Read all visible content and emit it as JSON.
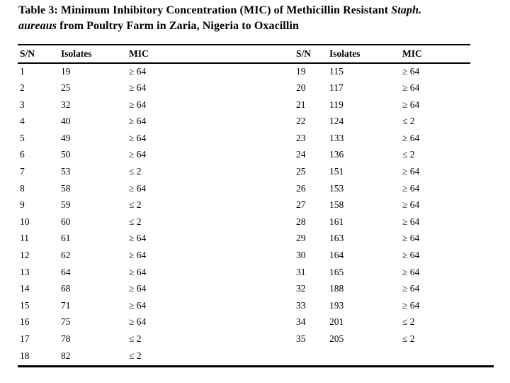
{
  "title": {
    "part1": "Table 3: Minimum Inhibitory Concentration (MIC) of Methicillin Resistant ",
    "part2_italic": "Staph.",
    "part3_italic": "aureaus",
    "part4": " from Poultry Farm in Zaria, Nigeria to Oxacillin"
  },
  "table": {
    "headers": [
      "S/N",
      "Isolates",
      "MIC"
    ],
    "left_rows": [
      [
        "1",
        "19",
        "≥ 64"
      ],
      [
        "2",
        "25",
        "≥ 64"
      ],
      [
        "3",
        "32",
        "≥ 64"
      ],
      [
        "4",
        "40",
        "≥ 64"
      ],
      [
        "5",
        "49",
        "≥ 64"
      ],
      [
        "6",
        "50",
        "≥ 64"
      ],
      [
        "7",
        "53",
        "≤ 2"
      ],
      [
        "8",
        "58",
        "≥ 64"
      ],
      [
        "9",
        "59",
        "≤ 2"
      ],
      [
        "10",
        "60",
        "≤ 2"
      ],
      [
        "11",
        "61",
        "≥ 64"
      ],
      [
        "12",
        "62",
        "≥ 64"
      ],
      [
        "13",
        "64",
        "≥ 64"
      ],
      [
        "14",
        "68",
        "≥ 64"
      ],
      [
        "15",
        "71",
        "≥ 64"
      ],
      [
        "16",
        "75",
        "≥ 64"
      ],
      [
        "17",
        "78",
        "≤ 2"
      ],
      [
        "18",
        "82",
        "≤ 2"
      ]
    ],
    "right_rows": [
      [
        "19",
        "115",
        "≥ 64"
      ],
      [
        "20",
        "117",
        "≥ 64"
      ],
      [
        "21",
        "119",
        "≥ 64"
      ],
      [
        "22",
        "124",
        "≤ 2"
      ],
      [
        "23",
        "133",
        "≥ 64"
      ],
      [
        "24",
        "136",
        "≤ 2"
      ],
      [
        "25",
        "151",
        "≥ 64"
      ],
      [
        "26",
        "153",
        "≥ 64"
      ],
      [
        "27",
        "158",
        "≥ 64"
      ],
      [
        "28",
        "161",
        "≥ 64"
      ],
      [
        "29",
        "163",
        "≥ 64"
      ],
      [
        "30",
        "164",
        "≥ 64"
      ],
      [
        "31",
        "165",
        "≥ 64"
      ],
      [
        "32",
        "188",
        "≥ 64"
      ],
      [
        "33",
        "193",
        "≥ 64"
      ],
      [
        "34",
        "201",
        "≤ 2"
      ],
      [
        "35",
        "205",
        "≤ 2"
      ]
    ]
  },
  "colors": {
    "text": "#000000",
    "background": "#ffffff",
    "rule": "#000000"
  }
}
